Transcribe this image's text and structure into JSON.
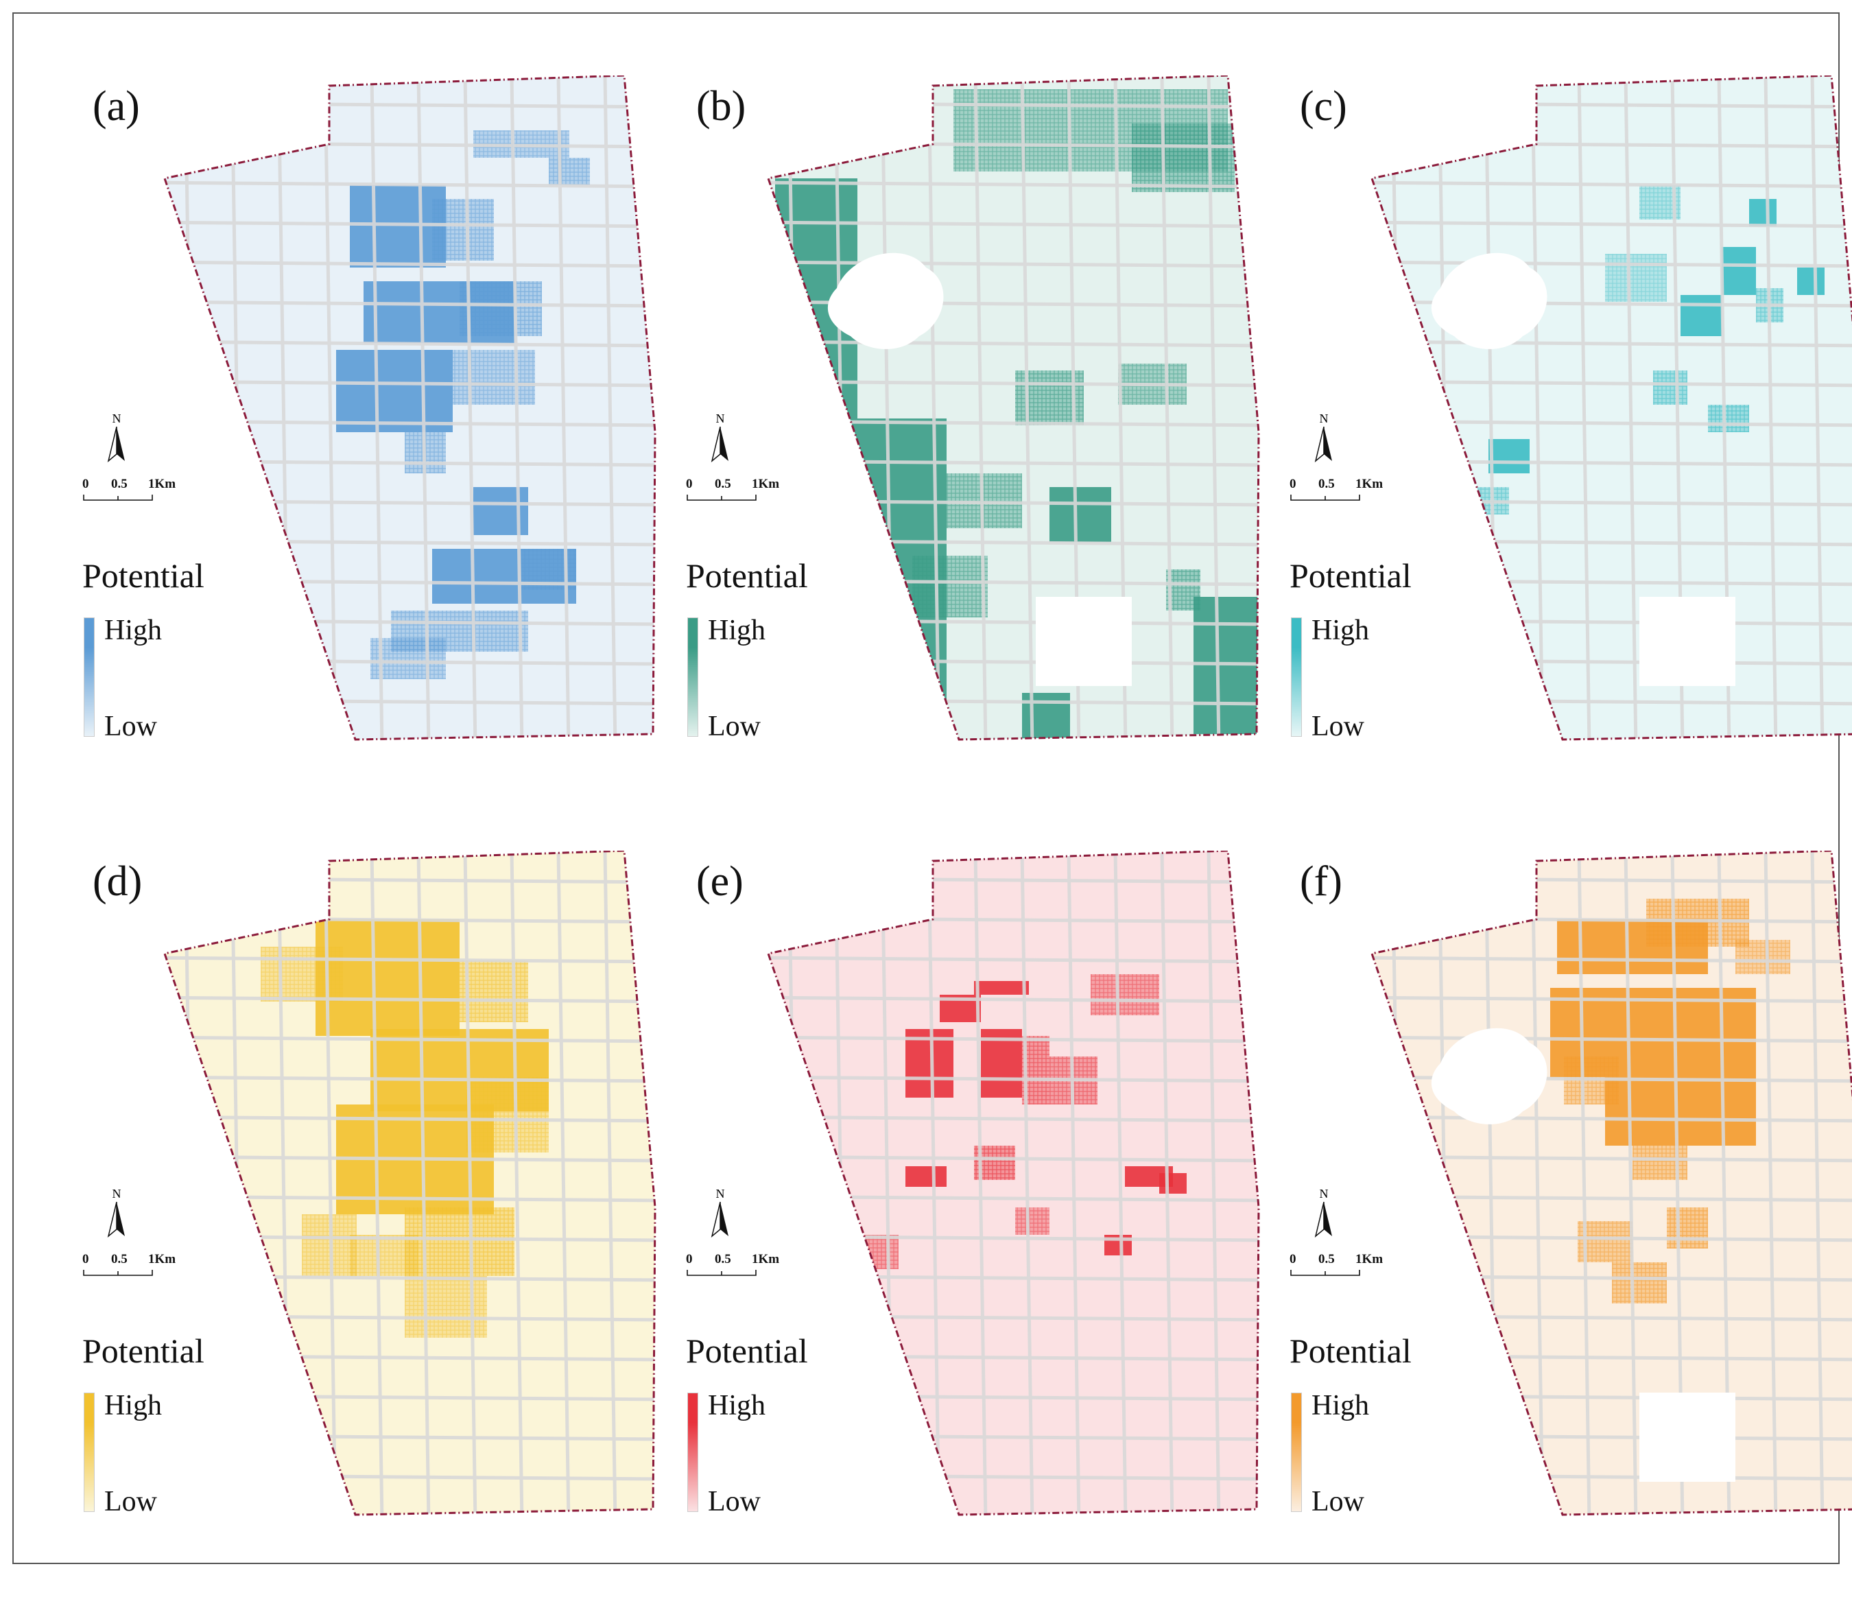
{
  "panels": [
    {
      "label": "(a)",
      "fill": "#5b9bd5",
      "base": "#e8f1f8",
      "legend_title": "Potential",
      "high": "High",
      "low": "Low"
    },
    {
      "label": "(b)",
      "fill": "#3a9c86",
      "base": "#e4f2ee",
      "legend_title": "Potential",
      "high": "High",
      "low": "Low"
    },
    {
      "label": "(c)",
      "fill": "#3cbcc4",
      "base": "#e7f6f6",
      "legend_title": "Potential",
      "high": "High",
      "low": "Low"
    },
    {
      "label": "(d)",
      "fill": "#f2c12e",
      "base": "#fbf5d8",
      "legend_title": "Potential",
      "high": "High",
      "low": "Low"
    },
    {
      "label": "(e)",
      "fill": "#e8323c",
      "base": "#fbe1e3",
      "legend_title": "Potential",
      "high": "High",
      "low": "Low"
    },
    {
      "label": "(f)",
      "fill": "#f39a2c",
      "base": "#fbeee0",
      "legend_title": "Potential",
      "high": "High",
      "low": "Low"
    }
  ],
  "north_label": "N",
  "scale": {
    "t0": "0",
    "t1": "0.5",
    "t2": "1Km"
  },
  "boundary_color": "#8b1a3a"
}
